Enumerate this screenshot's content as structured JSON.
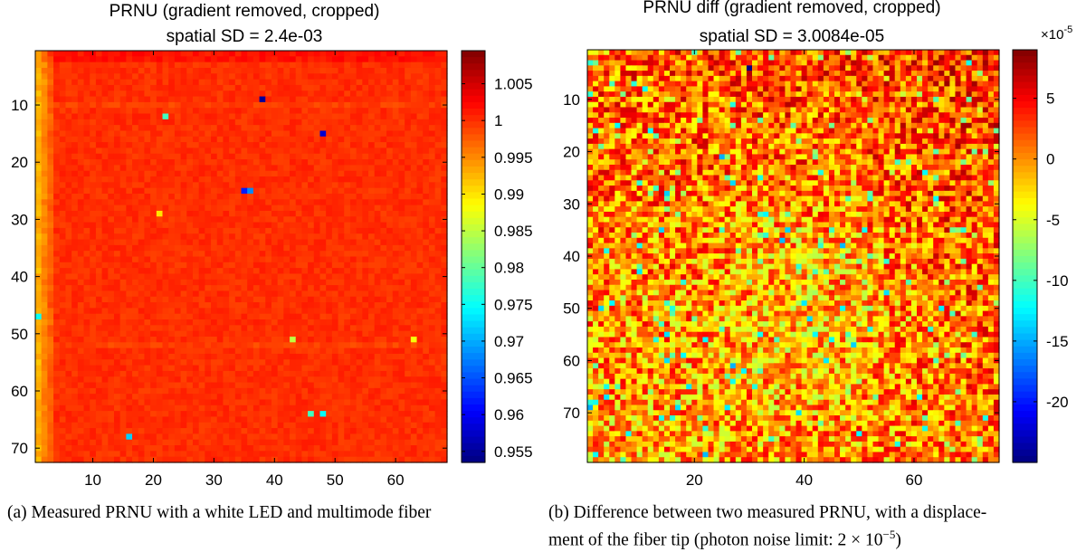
{
  "chart_data": [
    {
      "type": "heatmap",
      "title": "PRNU (gradient removed, cropped)",
      "subtitle": "spatial SD = 2.4e-03",
      "xlabel": "",
      "ylabel": "",
      "x_ticks": [
        10,
        20,
        30,
        40,
        50,
        60
      ],
      "y_ticks": [
        10,
        20,
        30,
        40,
        50,
        60,
        70
      ],
      "x_range": [
        0.5,
        68.5
      ],
      "y_range": [
        0.5,
        72.5
      ],
      "n_cols": 68,
      "n_rows": 72,
      "colorbar": {
        "range": [
          0.9535,
          1.0095
        ],
        "ticks": [
          0.955,
          0.96,
          0.965,
          0.97,
          0.975,
          0.98,
          0.985,
          0.99,
          0.995,
          1,
          1.005
        ],
        "tick_labels": [
          "0.955",
          "0.96",
          "0.965",
          "0.97",
          "0.975",
          "0.98",
          "0.985",
          "0.99",
          "0.995",
          "1",
          "1.005"
        ],
        "colormap": "jet",
        "exponent_label": ""
      },
      "background_level": 1.0,
      "outliers": [
        {
          "x": 38,
          "y": 9,
          "v": 0.955
        },
        {
          "x": 48,
          "y": 15,
          "v": 0.958
        },
        {
          "x": 22,
          "y": 12,
          "v": 0.978
        },
        {
          "x": 35,
          "y": 25,
          "v": 0.962
        },
        {
          "x": 36,
          "y": 25,
          "v": 0.968
        },
        {
          "x": 21,
          "y": 29,
          "v": 0.99
        },
        {
          "x": 1,
          "y": 47,
          "v": 0.975
        },
        {
          "x": 43,
          "y": 51,
          "v": 0.985
        },
        {
          "x": 63,
          "y": 51,
          "v": 0.988
        },
        {
          "x": 46,
          "y": 64,
          "v": 0.978
        },
        {
          "x": 48,
          "y": 64,
          "v": 0.975
        },
        {
          "x": 16,
          "y": 68,
          "v": 0.972
        }
      ],
      "caption": "(a) Measured PRNU with a white LED and multimode fiber"
    },
    {
      "type": "heatmap",
      "title": "PRNU diff (gradient removed, cropped)",
      "subtitle": "spatial SD = 3.0084e-05",
      "xlabel": "",
      "ylabel": "",
      "x_ticks": [
        20,
        40,
        60
      ],
      "y_ticks": [
        10,
        20,
        30,
        40,
        50,
        60,
        70
      ],
      "x_range": [
        0.5,
        75.5
      ],
      "y_range": [
        0.5,
        79.5
      ],
      "n_cols": 75,
      "n_rows": 79,
      "colorbar": {
        "range": [
          -25,
          9
        ],
        "ticks": [
          -20,
          -15,
          -10,
          -5,
          0,
          5
        ],
        "tick_labels": [
          "-20",
          "-15",
          "-10",
          "-5",
          "0",
          "5"
        ],
        "colormap": "jet",
        "exponent_label": "×10",
        "exponent_power": "-5"
      },
      "background_level": 0,
      "outliers": [
        {
          "x": 30,
          "y": 4,
          "v": -25
        },
        {
          "x": 25,
          "y": 21,
          "v": -15
        }
      ],
      "caption_line1": "(b) Difference between two measured PRNU, with a displace-",
      "caption_line2": "ment of the fiber tip (photon noise limit: 2 × 10",
      "caption_exp": "−5",
      "caption_end": ")"
    }
  ]
}
